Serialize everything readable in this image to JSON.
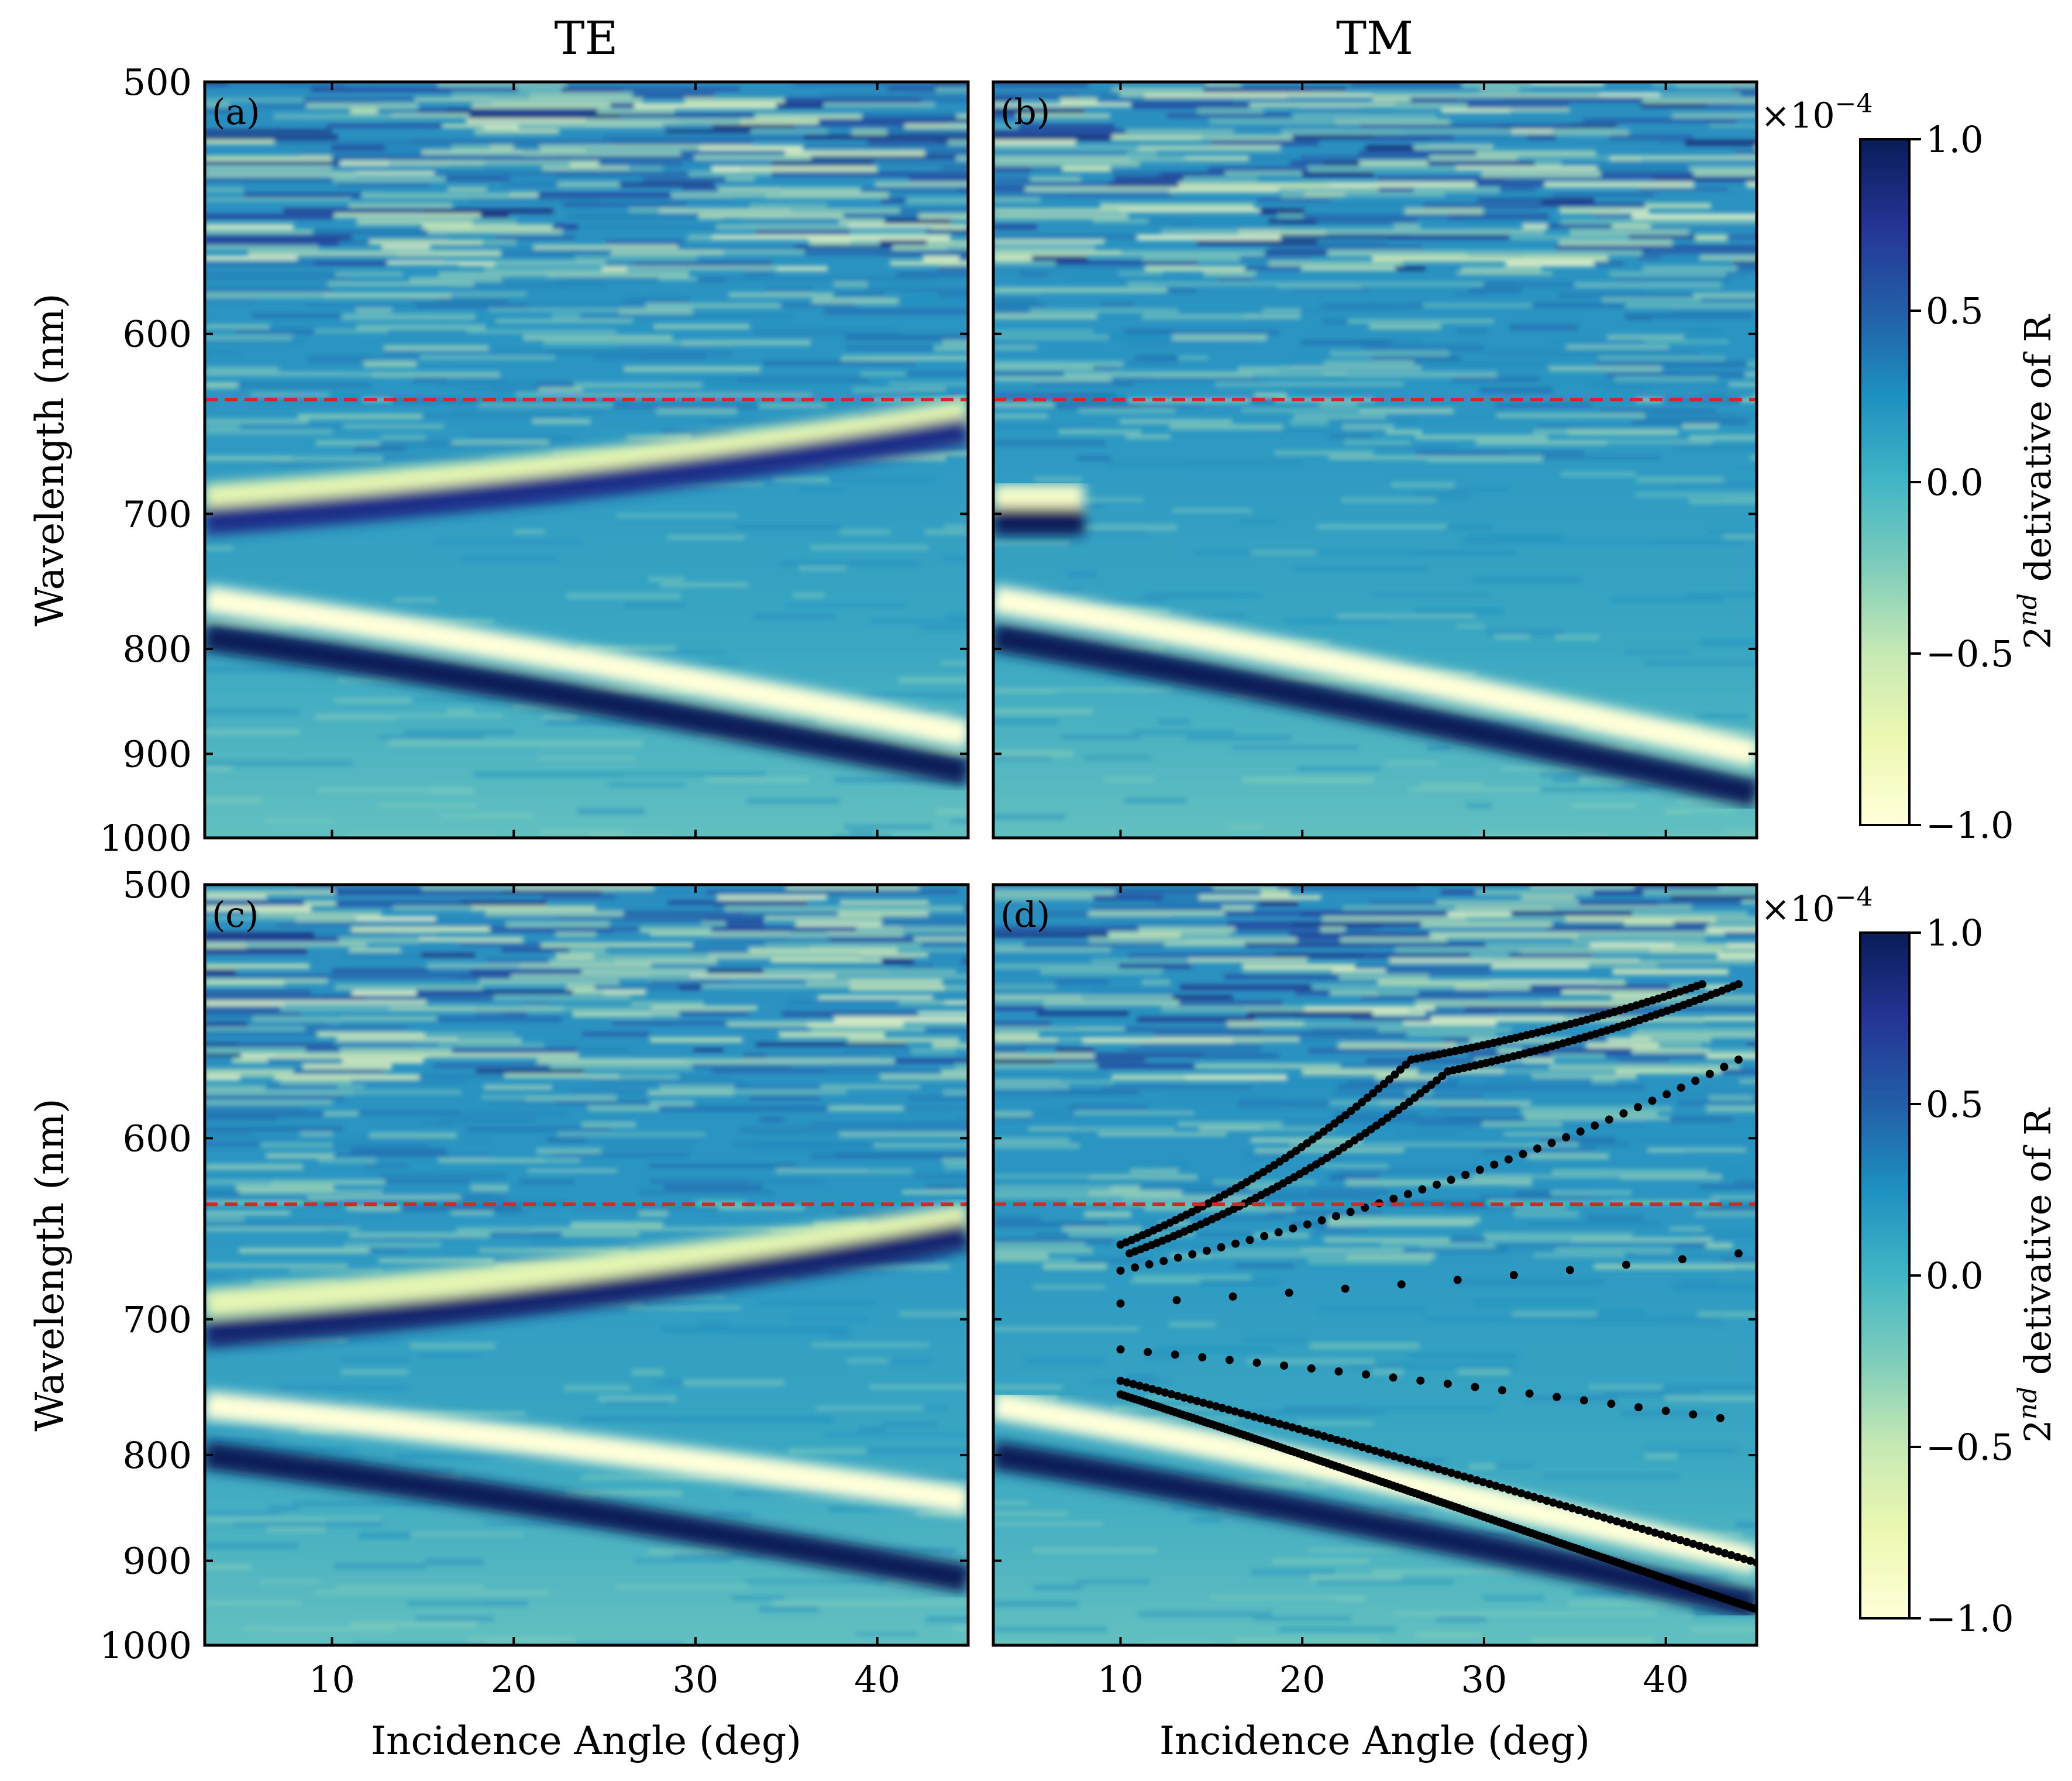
{
  "columns": {
    "left": "TE",
    "right": "TM"
  },
  "colors": {
    "colormap": [
      "#ffffd9",
      "#edf8b1",
      "#c7e9b4",
      "#7fcdbb",
      "#41b6c4",
      "#1d91c0",
      "#225ea8",
      "#253494",
      "#081d58"
    ],
    "reference_line": "#d62728",
    "markers": "#000000"
  },
  "chart_data": [
    {
      "panel": "(a)",
      "column": "TE",
      "type": "heatmap",
      "xlabel": "",
      "ylabel": "Wavelength (nm)",
      "xlim": [
        3,
        45
      ],
      "ylim": [
        1000,
        500
      ],
      "y_scale": "reciprocal",
      "x_ticks": [
        10,
        20,
        30,
        40
      ],
      "y_ticks": [
        500,
        600,
        700,
        800,
        900,
        1000
      ],
      "reference_line_wavelength": 633,
      "bands": [
        {
          "x": [
            3,
            45
          ],
          "y": [
            690,
            640
          ],
          "value": -0.7
        },
        {
          "x": [
            3,
            45
          ],
          "y": [
            705,
            650
          ],
          "value": 0.8
        },
        {
          "x": [
            3,
            45
          ],
          "y": [
            760,
            880
          ],
          "value": -1.0
        },
        {
          "x": [
            3,
            45
          ],
          "y": [
            790,
            920
          ],
          "value": 1.0
        }
      ]
    },
    {
      "panel": "(b)",
      "column": "TM",
      "type": "heatmap",
      "xlabel": "",
      "ylabel": "",
      "xlim": [
        3,
        45
      ],
      "ylim": [
        1000,
        500
      ],
      "y_scale": "reciprocal",
      "x_ticks": [
        10,
        20,
        30,
        40
      ],
      "y_ticks": [
        500,
        600,
        700,
        800,
        900,
        1000
      ],
      "reference_line_wavelength": 633,
      "bands": [
        {
          "x": [
            3,
            8
          ],
          "y": [
            690,
            690
          ],
          "value": -0.9
        },
        {
          "x": [
            3,
            8
          ],
          "y": [
            705,
            705
          ],
          "value": 1.0
        },
        {
          "x": [
            3,
            45
          ],
          "y": [
            760,
            900
          ],
          "value": -1.0
        },
        {
          "x": [
            3,
            45
          ],
          "y": [
            790,
            945
          ],
          "value": 1.0
        }
      ]
    },
    {
      "panel": "(c)",
      "column": "TE",
      "type": "heatmap",
      "xlabel": "Incidence Angle (deg)",
      "ylabel": "Wavelength (nm)",
      "xlim": [
        3,
        45
      ],
      "ylim": [
        1000,
        500
      ],
      "y_scale": "reciprocal",
      "x_ticks": [
        10,
        20,
        30,
        40
      ],
      "y_ticks": [
        500,
        600,
        700,
        800,
        900,
        1000
      ],
      "reference_line_wavelength": 633,
      "bands": [
        {
          "x": [
            3,
            45
          ],
          "y": [
            690,
            640
          ],
          "value": -0.7
        },
        {
          "x": [
            3,
            45
          ],
          "y": [
            710,
            650
          ],
          "value": 0.9
        },
        {
          "x": [
            3,
            45
          ],
          "y": [
            760,
            840
          ],
          "value": -1.0
        },
        {
          "x": [
            3,
            45
          ],
          "y": [
            800,
            920
          ],
          "value": 1.0
        }
      ]
    },
    {
      "panel": "(d)",
      "column": "TM",
      "type": "heatmap",
      "xlabel": "Incidence Angle (deg)",
      "ylabel": "",
      "xlim": [
        3,
        45
      ],
      "ylim": [
        1000,
        500
      ],
      "y_scale": "reciprocal",
      "x_ticks": [
        10,
        20,
        30,
        40
      ],
      "y_ticks": [
        500,
        600,
        700,
        800,
        900,
        1000
      ],
      "reference_line_wavelength": 633,
      "bands": [
        {
          "x": [
            3,
            45
          ],
          "y": [
            760,
            900
          ],
          "value": -1.0
        },
        {
          "x": [
            3,
            45
          ],
          "y": [
            800,
            950
          ],
          "value": 1.0
        }
      ],
      "overlay_series": [
        {
          "x": [
            10,
            26,
            42
          ],
          "y": [
            655,
            565,
            535
          ],
          "marker_spacing": 0.3
        },
        {
          "x": [
            10.5,
            28,
            44
          ],
          "y": [
            660,
            570,
            535
          ],
          "marker_spacing": 0.3
        },
        {
          "x": [
            10,
            44
          ],
          "y": [
            670,
            565
          ],
          "marker_spacing": 0.8
        },
        {
          "x": [
            10,
            44
          ],
          "y": [
            690,
            660
          ],
          "marker_spacing": 3.0
        },
        {
          "x": [
            10,
            43
          ],
          "y": [
            720,
            770
          ],
          "marker_spacing": 1.5
        },
        {
          "x": [
            10,
            45
          ],
          "y": [
            742,
            902
          ],
          "marker_spacing": 0.35
        },
        {
          "x": [
            10,
            45
          ],
          "y": [
            752,
            955
          ],
          "marker_spacing": 0.2
        }
      ]
    }
  ],
  "colorbars": [
    {
      "ticks": [
        "1.0",
        "0.5",
        "0.0",
        "−0.5",
        "−1.0"
      ],
      "range": [
        -1.0,
        1.0
      ],
      "label_prefix": "2",
      "label_sup": "nd",
      "label_rest": " detivative of R",
      "scale_prefix": "×10",
      "scale_sup": "−4"
    },
    {
      "ticks": [
        "1.0",
        "0.5",
        "0.0",
        "−0.5",
        "−1.0"
      ],
      "range": [
        -1.0,
        1.0
      ],
      "label_prefix": "2",
      "label_sup": "nd",
      "label_rest": " detivative of R",
      "scale_prefix": "×10",
      "scale_sup": "−4"
    }
  ]
}
